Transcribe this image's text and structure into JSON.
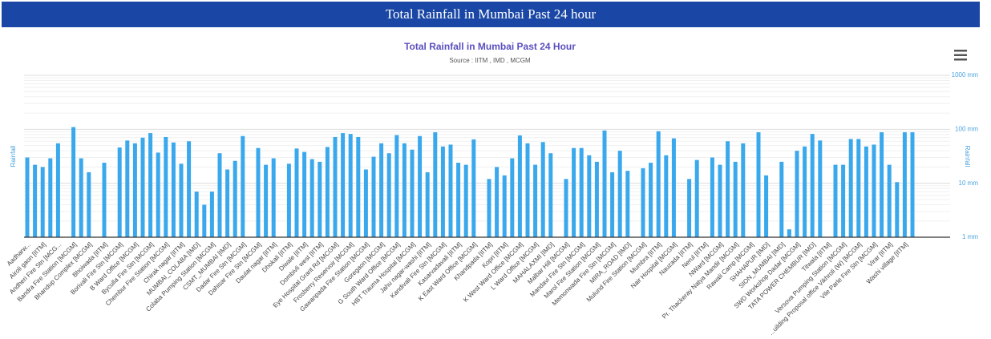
{
  "header": {
    "title": "Total Rainfall in Mumbai Past 24 hour"
  },
  "chart_data": {
    "type": "bar",
    "title": "Total Rainfall in Mumbai Past 24 Hour",
    "subtitle": "Source : IITM , IMD , MCGM",
    "y_label": "Rainfall",
    "y2_label": "Rainfall",
    "color": "#3aa8ec",
    "log_scale": true,
    "grid": true,
    "ylim": [
      1,
      1000
    ],
    "yticks": [
      {
        "value": 1,
        "label": "1 mm"
      },
      {
        "value": 10,
        "label": "10 mm"
      },
      {
        "value": 100,
        "label": "100 mm"
      },
      {
        "value": 1000,
        "label": "1000 mm"
      }
    ],
    "categories": [
      "Aadharw...",
      null,
      "Airoli gaon [IITM]",
      null,
      "Andheri Fire Stn [MCG...",
      null,
      "Bandra Fire Station [MCGM]",
      null,
      "Bhandup Complex [MCGM]",
      null,
      "Bhoiwada [IITM]",
      null,
      "Borivali Fire Stn [MCGM]",
      null,
      "B Ward Office [MCGM]",
      null,
      "Byculla Fire Stn [MCGM]",
      null,
      "Chembur Fire Station [MCGM]",
      null,
      "Chirak nagar [IITM]",
      null,
      "MUMBAI_COLABA [IMD]",
      null,
      "Colaba Pumping Station [MCGM]",
      null,
      "CSMT_MUMBAI [IMD]",
      null,
      "Dadar Fire Stn [MCGM]",
      null,
      "Dahisar Fire Stn [MCGM]",
      null,
      "Daulat nagar [IITM]",
      null,
      "Dhokali [IITM]",
      null,
      "Diwale [IITM]",
      null,
      "Dombivli west [IITM]",
      null,
      "Eye Hospital Grant Rd [MCGM]",
      null,
      "Frosberry Reservoir [MCGM]",
      null,
      "Gawanpada Fire Station [MCGM]",
      null,
      "Goregaon [MCGM]",
      null,
      "G South Ward Office [MCGM]",
      null,
      "HBT Trauma Hospital [MCGM]",
      null,
      "Jahu nagar-washi [IITM]",
      null,
      "Kandivali Fire Stn [MCGM]",
      null,
      "Kasarvadavali [IITM]",
      null,
      "K East Ward Office [MCGM]",
      null,
      "Khandpada [IITM]",
      null,
      "Kopri [IITM]",
      null,
      "K West Ward Office [MCGM]",
      null,
      "L Ward Office [MCGM]",
      null,
      "MAHALAXMI [IMD]",
      null,
      "Malbar Hill [MCGM]",
      null,
      "Mandavi Fire Stn [MCGM]",
      null,
      "Marol Fire Station [MCGM]",
      null,
      "Memonwada Fire Stn [MCGM]",
      null,
      "MIRA_ROAD [IMD]",
      null,
      "Mulund Fire Station [MCGM]",
      null,
      "Mumbra [IITM]",
      null,
      "Nair Hospital [MCGM]",
      null,
      "Nauzada [IITM]",
      null,
      "Nerul [IITM]",
      null,
      "NWard [MCGM]",
      null,
      "Pr. Thackeray Natya Mandir [MCGM]",
      null,
      "Rawali Camp [MCGM]",
      null,
      "SHAHAPUR [IMD]",
      null,
      "SION_MUMBAI [IMD]",
      null,
      "SWD Workshop Dadar [MCGM]",
      null,
      "TATA POWER CHEMBUR [IMD]",
      null,
      "Titwala [IITM]",
      null,
      "Versova Pumping Station [MCGM]",
      null,
      "...uilding Proposal office Vikhroli (W) [MCGM]",
      null,
      "Vile Parle Fire Stn [MCGM]",
      null,
      "Virar [IITM]",
      null,
      "Washi village [IITM]",
      null
    ],
    "values": [
      30,
      22,
      20,
      29,
      55,
      null,
      110,
      29,
      16,
      null,
      24,
      null,
      46,
      62,
      55,
      70,
      85,
      37,
      72,
      57,
      23,
      60,
      7,
      4,
      7,
      36,
      18,
      26,
      75,
      null,
      45,
      22,
      29,
      null,
      23,
      44,
      38,
      28,
      25,
      47,
      72,
      85,
      82,
      72,
      18,
      31,
      55,
      36,
      78,
      55,
      42,
      75,
      16,
      88,
      48,
      52,
      24,
      22,
      65,
      null,
      12,
      20,
      14,
      29,
      77,
      55,
      22,
      58,
      36,
      null,
      12,
      45,
      45,
      33,
      25,
      95,
      16,
      40,
      17,
      null,
      19,
      24,
      92,
      33,
      68,
      null,
      12,
      27,
      null,
      30,
      22,
      60,
      25,
      55,
      null,
      88,
      14,
      null,
      25,
      1.4,
      40,
      48,
      82,
      62,
      null,
      22,
      22,
      66,
      66,
      48,
      52,
      88,
      22,
      10.5,
      88,
      88
    ]
  }
}
